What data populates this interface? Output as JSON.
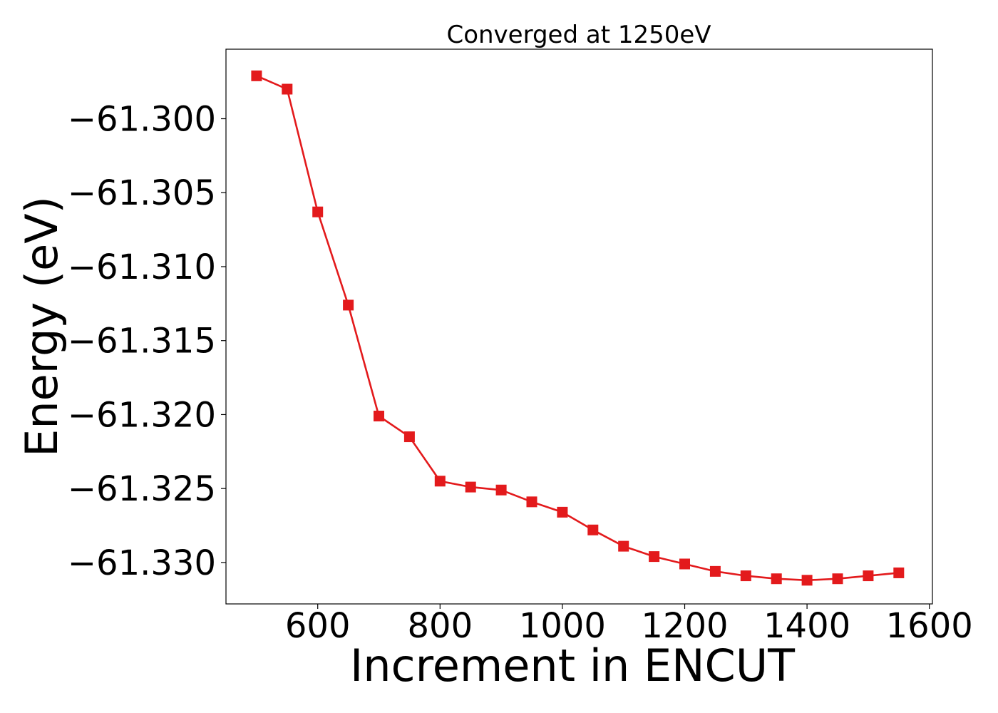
{
  "chart_data": {
    "type": "line",
    "title": "Converged at 1250eV",
    "xlabel": "Increment in ENCUT",
    "ylabel": "Energy (eV)",
    "xlim": [
      450,
      1605
    ],
    "ylim": [
      -61.3328,
      -61.2953
    ],
    "xticks": [
      600,
      800,
      1000,
      1200,
      1400,
      1600
    ],
    "xtick_labels": [
      "600",
      "800",
      "1000",
      "1200",
      "1400",
      "1600"
    ],
    "yticks": [
      -61.3,
      -61.305,
      -61.31,
      -61.315,
      -61.32,
      -61.325,
      -61.33
    ],
    "ytick_labels": [
      "−61.300",
      "−61.305",
      "−61.310",
      "−61.315",
      "−61.320",
      "−61.325",
      "−61.330"
    ],
    "grid": false,
    "color": "#e31a1c",
    "marker": "square",
    "series": [
      {
        "x": [
          500,
          550,
          600,
          650,
          700,
          750,
          800,
          850,
          900,
          950,
          1000,
          1050,
          1100,
          1150,
          1200,
          1250,
          1300,
          1350,
          1400,
          1450,
          1500,
          1550
        ],
        "values": [
          -61.2971,
          -61.298,
          -61.3063,
          -61.3126,
          -61.3201,
          -61.3215,
          -61.3245,
          -61.3249,
          -61.3251,
          -61.3259,
          -61.3266,
          -61.3278,
          -61.3289,
          -61.3296,
          -61.3301,
          -61.3306,
          -61.3309,
          -61.3311,
          -61.3312,
          -61.3311,
          -61.3309,
          -61.3307
        ]
      }
    ]
  }
}
